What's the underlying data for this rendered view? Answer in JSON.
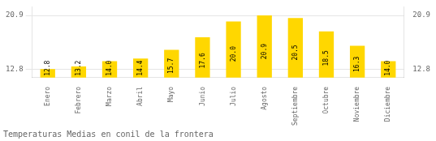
{
  "chart_data": {
    "type": "bar",
    "title": "Temperaturas Medias en conil de la frontera",
    "categories": [
      "Enero",
      "Febrero",
      "Marzo",
      "Abril",
      "Mayo",
      "Junio",
      "Julio",
      "Agosto",
      "Septiembre",
      "Octubre",
      "Noviembre",
      "Diciembre"
    ],
    "values": [
      12.8,
      13.2,
      14.0,
      14.4,
      15.7,
      17.6,
      20.0,
      20.9,
      20.5,
      18.5,
      16.3,
      14.0
    ],
    "value_labels": [
      "12.8",
      "13.2",
      "14.0",
      "14.4",
      "15.7",
      "17.6",
      "20.0",
      "20.9",
      "20.5",
      "18.5",
      "16.3",
      "14.0"
    ],
    "color": "#FFD700",
    "ylim": [
      11.5,
      22.2
    ],
    "yticks": [
      12.8,
      20.9
    ],
    "y2lim": [
      11.5,
      22.2
    ],
    "y2ticks": [
      12.8,
      20.9
    ],
    "grid": true,
    "data_labels": true
  }
}
